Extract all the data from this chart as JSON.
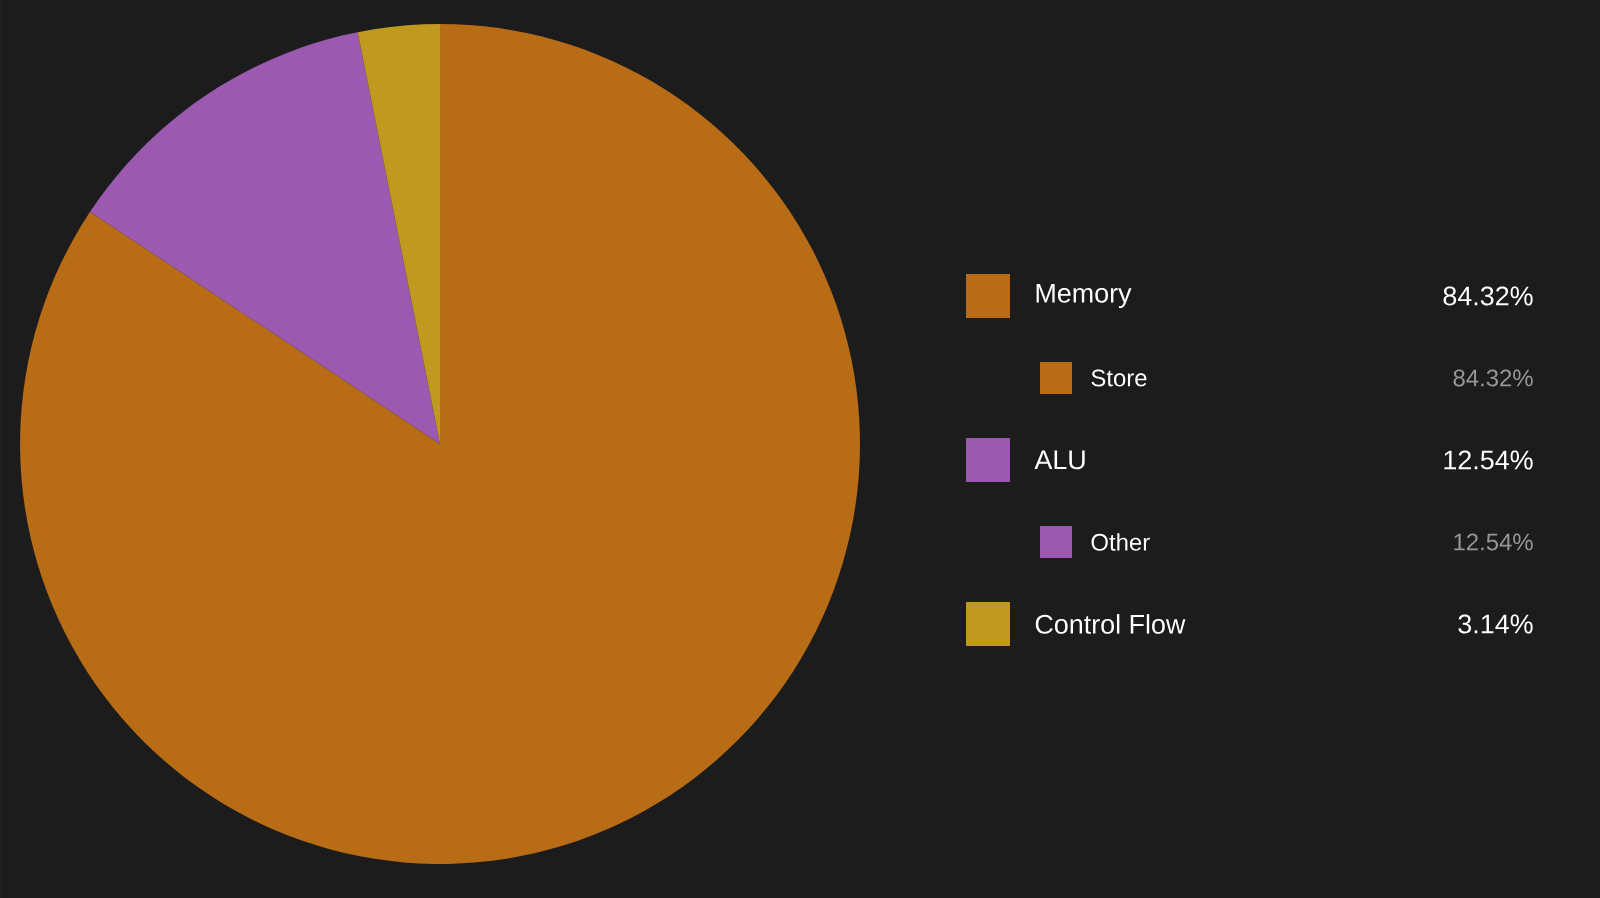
{
  "chart_data": {
    "type": "pie",
    "categories": [
      "Memory",
      "ALU",
      "Control Flow"
    ],
    "values": [
      84.32,
      12.54,
      3.14
    ],
    "colors": [
      "#b86c16",
      "#9b59b0",
      "#c09a1e"
    ],
    "value_labels": [
      "84.32%",
      "12.54%",
      "3.14%"
    ],
    "legend": "right",
    "annotations": [
      "Store",
      "84.32%",
      "Other",
      "12.54%"
    ]
  }
}
